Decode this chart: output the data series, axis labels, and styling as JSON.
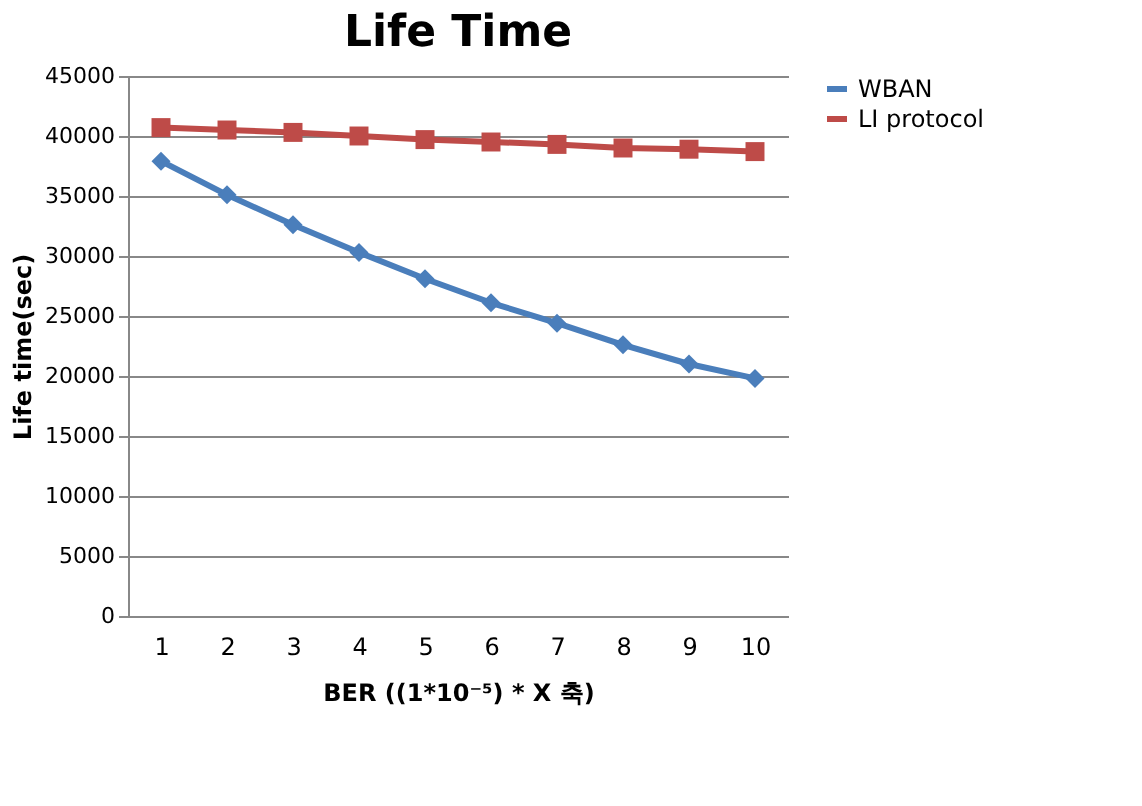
{
  "chart_data": {
    "type": "line",
    "title": "Life Time",
    "xlabel": "BER ((1*10⁻⁵) * X 축)",
    "ylabel": "Life time(sec)",
    "categories": [
      "1",
      "2",
      "3",
      "4",
      "5",
      "6",
      "7",
      "8",
      "9",
      "10"
    ],
    "series": [
      {
        "name": "WBAN",
        "color": "#4a7ebb",
        "marker": "diamond",
        "values": [
          37900,
          35100,
          32600,
          30300,
          28100,
          26100,
          24400,
          22600,
          21000,
          19800
        ]
      },
      {
        "name": "LI protocol",
        "color": "#be4b48",
        "marker": "square",
        "values": [
          40700,
          40500,
          40300,
          40000,
          39700,
          39500,
          39300,
          39000,
          38900,
          38700
        ]
      }
    ],
    "ylim": [
      0,
      45000
    ],
    "yticks": [
      0,
      5000,
      10000,
      15000,
      20000,
      25000,
      30000,
      35000,
      40000,
      45000
    ],
    "grid": "y",
    "legend": "right",
    "line_style": "solid"
  }
}
